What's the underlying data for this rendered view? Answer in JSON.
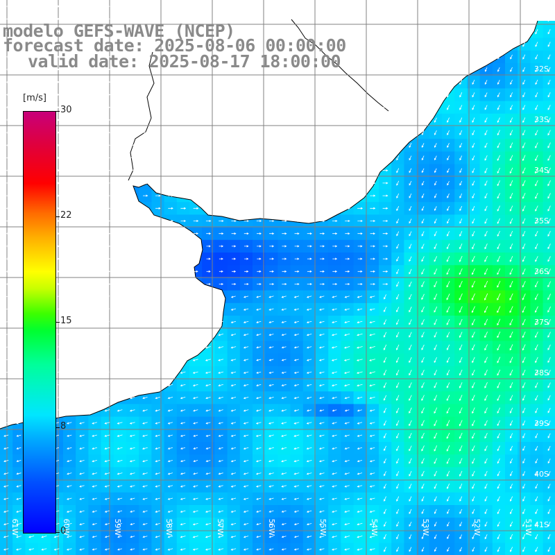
{
  "title": {
    "line1": "modelo GEFS-WAVE (NCEP)",
    "line2": "forecast date: 2025-08-06 00:00:00",
    "line3": "valid date: 2025-08-17 18:00:00"
  },
  "legend": {
    "unit": "[m/s]",
    "ticks": [
      "30",
      "22",
      "15",
      "8",
      "0"
    ],
    "tick_values": [
      30,
      22,
      15,
      8,
      0
    ],
    "min": 0,
    "max": 30
  },
  "lat_labels": [
    "32S",
    "33S",
    "34S",
    "35S",
    "36S",
    "37S",
    "38S",
    "39S",
    "40S",
    "41S"
  ],
  "lon_labels": [
    "61W",
    "60W",
    "59W",
    "58W",
    "57W",
    "56W",
    "55W",
    "54W",
    "53W",
    "52W",
    "51W"
  ],
  "colors": {
    "land": "#ffffff",
    "coast": "#000000",
    "grid": "#808080",
    "arrow": "#ffffff",
    "title": "#8a8a8a"
  }
}
